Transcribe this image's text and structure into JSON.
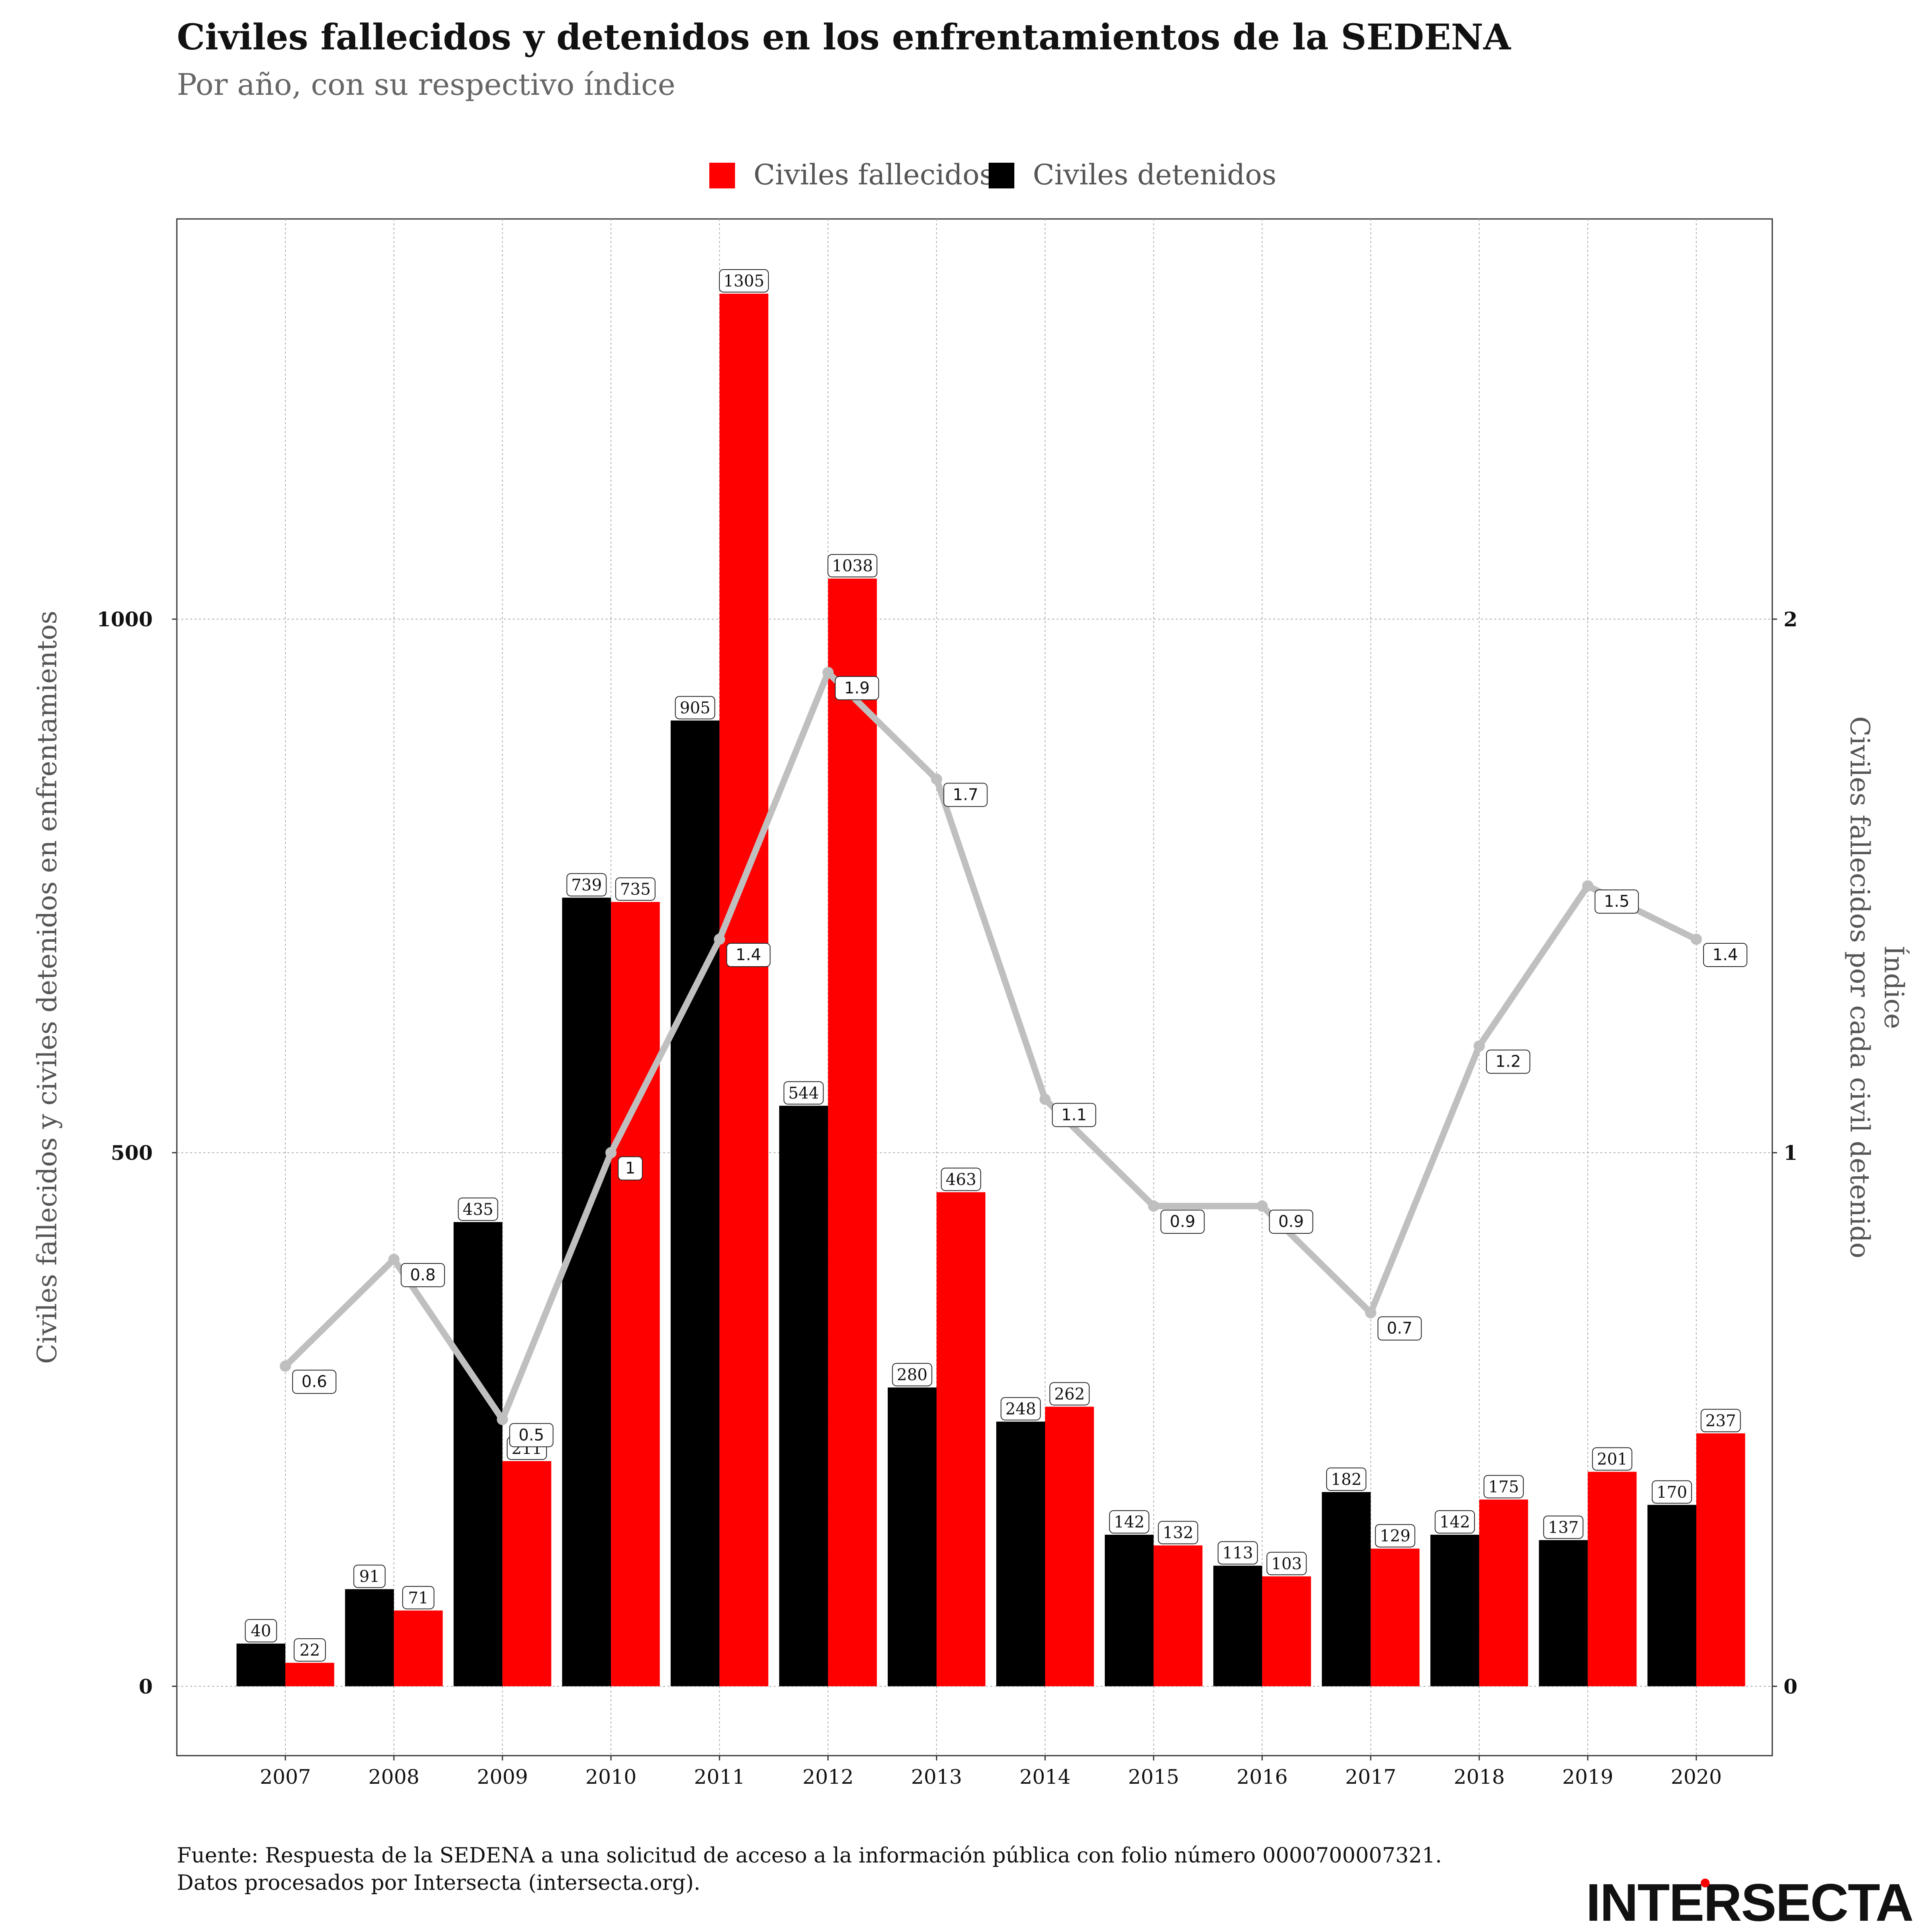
{
  "header": {
    "title": "Civiles fallecidos y detenidos en los enfrentamientos de la SEDENA",
    "subtitle": "Por año, con su respectivo índice"
  },
  "footer": {
    "line1": "Fuente: Respuesta de la SEDENA a una solicitud de acceso a la información pública con folio número 0000700007321.",
    "line2": "Datos procesados por Intersecta (intersecta.org)."
  },
  "logo": {
    "text": "INTERSECTA"
  },
  "chart_data": {
    "type": "bar",
    "categories": [
      "2007",
      "2008",
      "2009",
      "2010",
      "2011",
      "2012",
      "2013",
      "2014",
      "2015",
      "2016",
      "2017",
      "2018",
      "2019",
      "2020"
    ],
    "series": [
      {
        "name": "Civiles detenidos",
        "color": "#000000",
        "values": [
          40,
          91,
          435,
          739,
          905,
          544,
          280,
          248,
          142,
          113,
          182,
          142,
          137,
          170
        ]
      },
      {
        "name": "Civiles fallecidos",
        "color": "#ff0000",
        "values": [
          22,
          71,
          211,
          735,
          1305,
          1038,
          463,
          262,
          132,
          103,
          129,
          175,
          201,
          237
        ]
      }
    ],
    "legend_order": [
      "Civiles fallecidos",
      "Civiles detenidos"
    ],
    "legend_position": "top",
    "line_series": {
      "name": "Índice",
      "color": "#bfbfbf",
      "values": [
        0.6,
        0.8,
        0.5,
        1,
        1.4,
        1.9,
        1.7,
        1.1,
        0.9,
        0.9,
        0.7,
        1.2,
        1.5,
        1.4
      ],
      "labels": [
        "0.6",
        "0.8",
        "0.5",
        "1",
        "1.4",
        "1.9",
        "1.7",
        "1.1",
        "0.9",
        "0.9",
        "0.7",
        "1.2",
        "1.5",
        "1.4"
      ]
    },
    "ylabel_left": "Civiles fallecidos y civiles detenidos en enfrentamientos",
    "ylabel_right_line1": "Índice",
    "ylabel_right_line2": "Civiles fallecidos por cada civil detenido",
    "ylim_left": [
      -65,
      1375
    ],
    "yticks_left": [
      0,
      500,
      1000
    ],
    "ylim_right": [
      -0.13,
      2.75
    ],
    "yticks_right": [
      0,
      1,
      2
    ],
    "grid": true
  }
}
